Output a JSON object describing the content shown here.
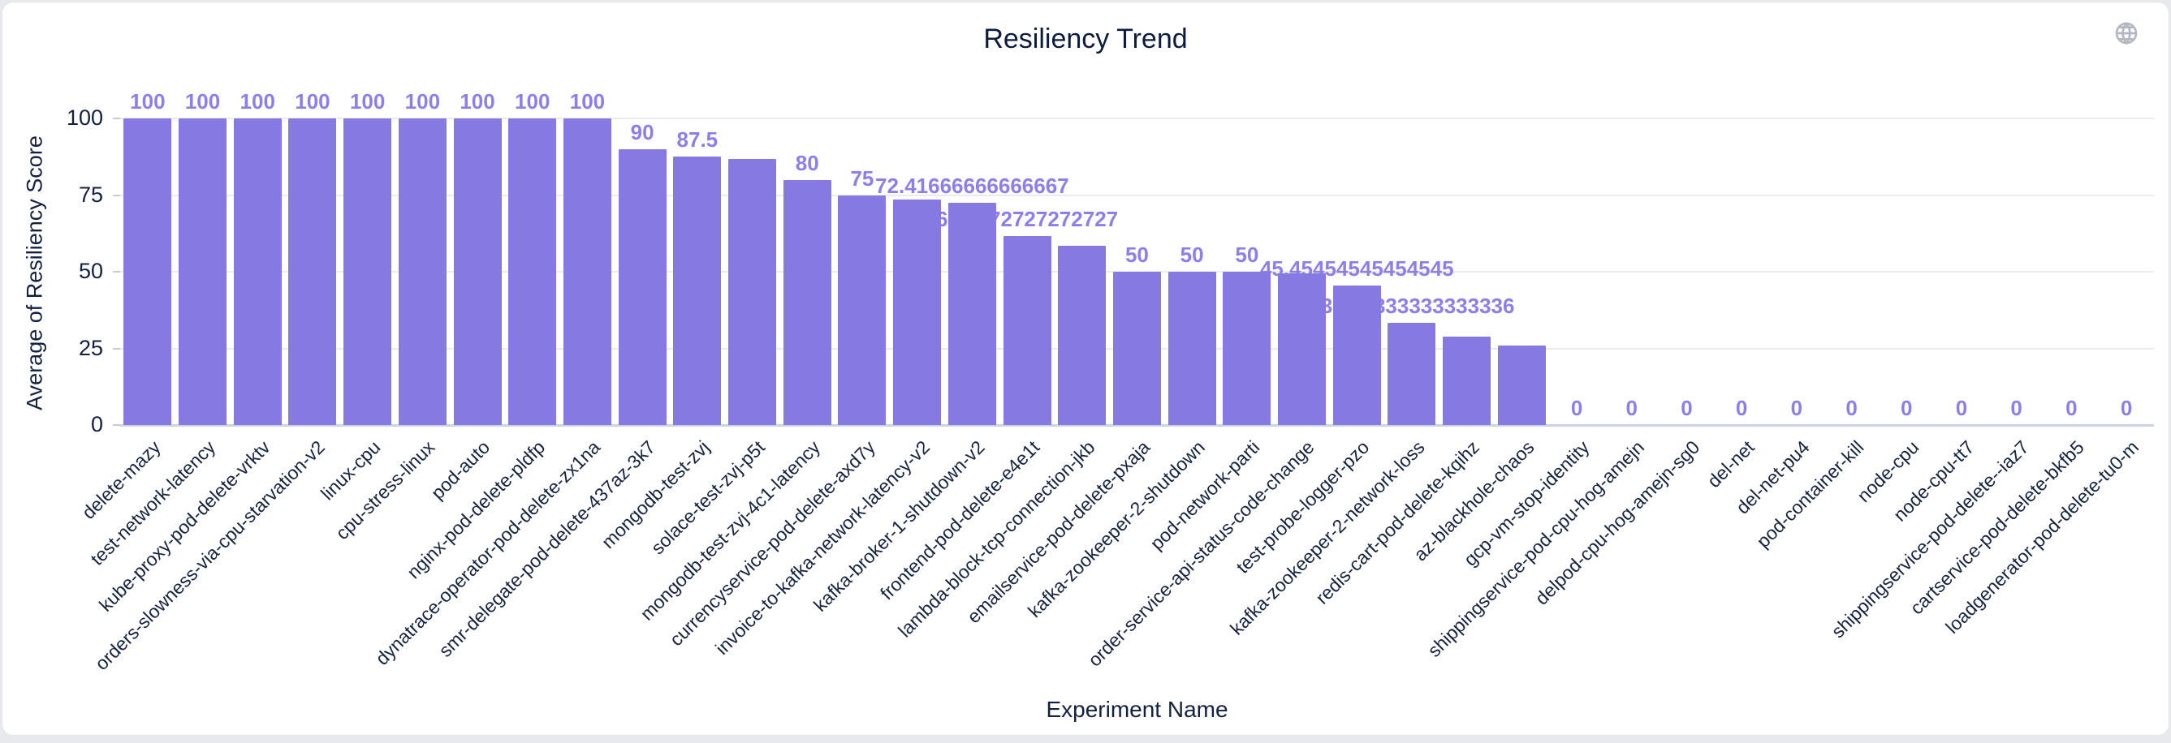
{
  "page": {
    "card_background": "#ffffff",
    "page_background": "#e8e9ec"
  },
  "icons": {
    "globe": "globe-icon"
  },
  "chart_data": {
    "type": "bar",
    "title": "Resiliency Trend",
    "xlabel": "Experiment Name",
    "ylabel": "Average of Resiliency Score",
    "ylim": [
      0,
      100
    ],
    "yticks": [
      0,
      25,
      50,
      75,
      100
    ],
    "grid": true,
    "legend_position": "none",
    "bar_color": "#8779e2",
    "value_label_color": "#8c7fe9",
    "points": [
      {
        "category": "delete-mazy",
        "value": 100,
        "label": "100"
      },
      {
        "category": "test-network-latency",
        "value": 100,
        "label": "100"
      },
      {
        "category": "kube-proxy-pod-delete-vrktv",
        "value": 100,
        "label": "100"
      },
      {
        "category": "orders-slowness-via-cpu-starvation-v2",
        "value": 100,
        "label": "100"
      },
      {
        "category": "linux-cpu",
        "value": 100,
        "label": "100"
      },
      {
        "category": "cpu-stress-linux",
        "value": 100,
        "label": "100"
      },
      {
        "category": "pod-auto",
        "value": 100,
        "label": "100"
      },
      {
        "category": "nginx-pod-delete-pldfp",
        "value": 100,
        "label": "100"
      },
      {
        "category": "dynatrace-operator-pod-delete-zx1na",
        "value": 100,
        "label": "100"
      },
      {
        "category": "smr-delegate-pod-delete-437az-3k7",
        "value": 90,
        "label": "90"
      },
      {
        "category": "mongodb-test-zvj",
        "value": 87.5,
        "label": "87.5"
      },
      {
        "category": "solace-test-zvj-p5t",
        "value": 86.8,
        "label": ""
      },
      {
        "category": "mongodb-test-zvj-4c1-latency",
        "value": 80,
        "label": "80"
      },
      {
        "category": "currencyservice-pod-delete-axd7y",
        "value": 75,
        "label": "75"
      },
      {
        "category": "invoice-to-kafka-network-latency-v2",
        "value": 73.5,
        "label": ""
      },
      {
        "category": "kafka-broker-1-shutdown-v2",
        "value": 72.41666666666667,
        "label": "72.41666666666667"
      },
      {
        "category": "frontend-pod-delete-e4e1t",
        "value": 61.7272727272727,
        "label": "61.7272727272727"
      },
      {
        "category": "lambda-block-tcp-connection-jkb",
        "value": 58.5,
        "label": ""
      },
      {
        "category": "emailservice-pod-delete-pxaja",
        "value": 50,
        "label": "50"
      },
      {
        "category": "kafka-zookeeper-2-shutdown",
        "value": 50,
        "label": "50"
      },
      {
        "category": "pod-network-parti",
        "value": 50,
        "label": "50"
      },
      {
        "category": "order-service-api-status-code-change",
        "value": 49.5,
        "label": ""
      },
      {
        "category": "test-probe-logger-pzo",
        "value": 45.45454545454545,
        "label": "45.45454545454545"
      },
      {
        "category": "kafka-zookeeper-2-network-loss",
        "value": 33.333333333333336,
        "label": "33.333333333333336"
      },
      {
        "category": "redis-cart-pod-delete-kqihz",
        "value": 28.8,
        "label": ""
      },
      {
        "category": "az-blackhole-chaos",
        "value": 26,
        "label": ""
      },
      {
        "category": "gcp-vm-stop-identity",
        "value": 0,
        "label": "0"
      },
      {
        "category": "shippingservice-pod-cpu-hog-amejn",
        "value": 0,
        "label": "0"
      },
      {
        "category": "delpod-cpu-hog-amejn-sg0",
        "value": 0,
        "label": "0"
      },
      {
        "category": "del-net",
        "value": 0,
        "label": "0"
      },
      {
        "category": "del-net-pu4",
        "value": 0,
        "label": "0"
      },
      {
        "category": "pod-container-kill",
        "value": 0,
        "label": "0"
      },
      {
        "category": "node-cpu",
        "value": 0,
        "label": "0"
      },
      {
        "category": "node-cpu-tt7",
        "value": 0,
        "label": "0"
      },
      {
        "category": "shippingservice-pod-delete--iaz7",
        "value": 0,
        "label": "0"
      },
      {
        "category": "cartservice-pod-delete-bkfb5",
        "value": 0,
        "label": "0"
      },
      {
        "category": "loadgenerator-pod-delete-tu0-m",
        "value": 0,
        "label": "0"
      }
    ]
  }
}
